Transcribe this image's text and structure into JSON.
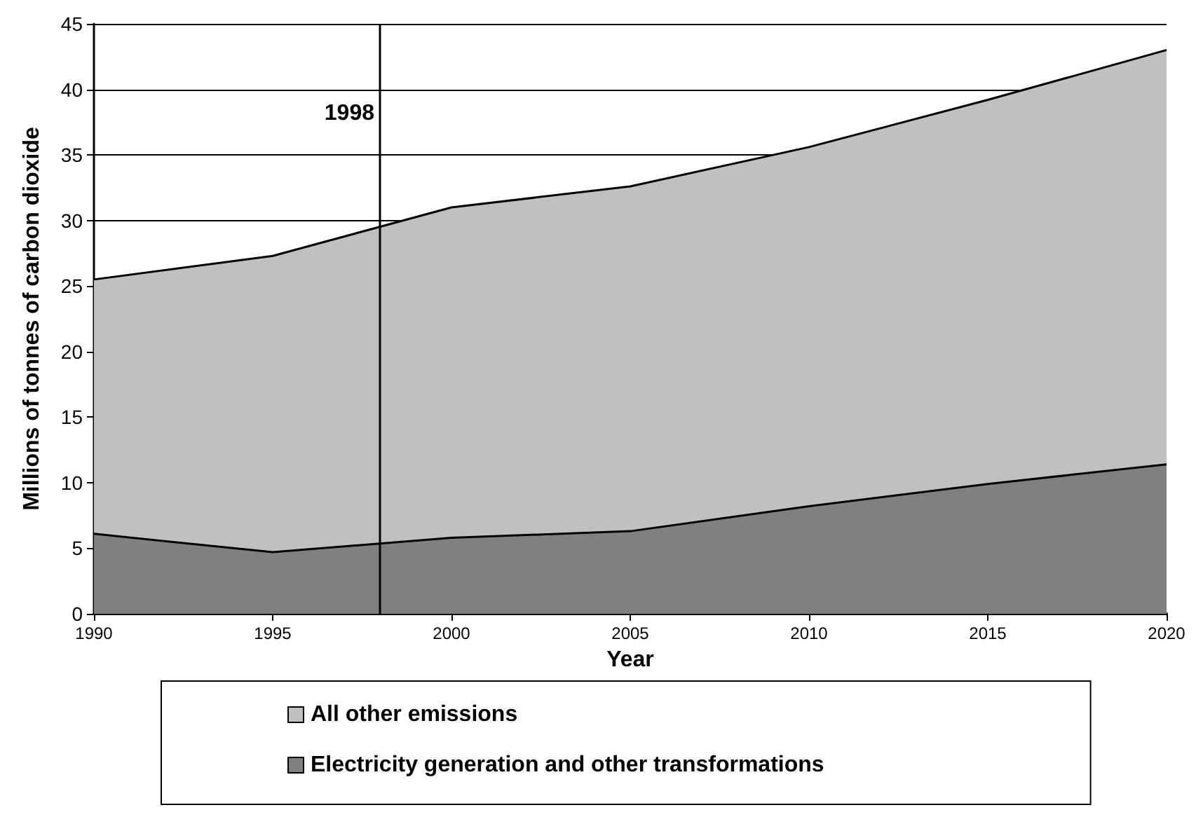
{
  "chart_data": {
    "type": "area",
    "xlabel": "Year",
    "ylabel": "Millions of tonnes of carbon dioxide",
    "x": [
      1990,
      1995,
      2000,
      2005,
      2010,
      2015,
      2020
    ],
    "stacked": true,
    "series": [
      {
        "name": "Electricity generation and other transformations",
        "color": "#808080",
        "values": [
          6.1,
          4.7,
          5.8,
          6.3,
          8.2,
          9.9,
          11.4
        ]
      },
      {
        "name": "All other emissions",
        "color": "#c0c0c0",
        "values": [
          19.4,
          22.6,
          25.2,
          26.3,
          27.4,
          29.3,
          31.6
        ]
      }
    ],
    "xlim": [
      1990,
      2020
    ],
    "xticks": [
      1990,
      1995,
      2000,
      2005,
      2010,
      2015,
      2020
    ],
    "ylim": [
      0,
      45
    ],
    "yticks": [
      0,
      5,
      10,
      15,
      20,
      25,
      30,
      35,
      40,
      45
    ],
    "ref_lines": [
      {
        "axis": "x",
        "value": 1998,
        "label": "1998",
        "color": "#000000"
      }
    ],
    "grid": "y",
    "legend": "bottom"
  }
}
